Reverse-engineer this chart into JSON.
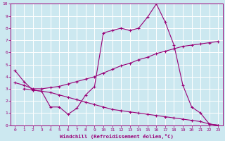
{
  "xlabel": "Windchill (Refroidissement éolien,°C)",
  "xlim": [
    -0.5,
    23.5
  ],
  "ylim": [
    0,
    10
  ],
  "xticks": [
    0,
    1,
    2,
    3,
    4,
    5,
    6,
    7,
    8,
    9,
    10,
    11,
    12,
    13,
    14,
    15,
    16,
    17,
    18,
    19,
    20,
    21,
    22,
    23
  ],
  "yticks": [
    0,
    1,
    2,
    3,
    4,
    5,
    6,
    7,
    8,
    9,
    10
  ],
  "background_color": "#cce8f0",
  "grid_color": "#ffffff",
  "line_color": "#990077",
  "line1_x": [
    0,
    1,
    2,
    3,
    4,
    5,
    6,
    7,
    8,
    9,
    10,
    11,
    12,
    13,
    14,
    15,
    16,
    17,
    18,
    19,
    20,
    21,
    22,
    23
  ],
  "line1_y": [
    4.5,
    3.6,
    2.9,
    2.8,
    1.5,
    1.5,
    0.9,
    1.4,
    2.5,
    3.2,
    7.6,
    7.8,
    8.0,
    7.8,
    8.0,
    8.9,
    10.0,
    8.5,
    6.6,
    3.3,
    1.5,
    1.0,
    0.1,
    0.0
  ],
  "line2_x": [
    0,
    1,
    2,
    3,
    4,
    5,
    6,
    7,
    8,
    9,
    10,
    11,
    12,
    13,
    14,
    15,
    16,
    17,
    18,
    19,
    20,
    21,
    22,
    23
  ],
  "line2_y": [
    3.5,
    3.3,
    3.0,
    3.0,
    3.1,
    3.2,
    3.4,
    3.6,
    3.8,
    4.0,
    4.3,
    4.6,
    4.9,
    5.1,
    5.4,
    5.6,
    5.9,
    6.1,
    6.3,
    6.5,
    6.6,
    6.7,
    6.8,
    6.9
  ],
  "line3_x": [
    1,
    2,
    3,
    4,
    5,
    6,
    7,
    8,
    9,
    10,
    11,
    12,
    13,
    14,
    15,
    16,
    17,
    18,
    19,
    20,
    21,
    22,
    23
  ],
  "line3_y": [
    3.0,
    2.9,
    2.8,
    2.7,
    2.5,
    2.3,
    2.1,
    1.9,
    1.7,
    1.5,
    1.3,
    1.2,
    1.1,
    1.0,
    0.9,
    0.8,
    0.7,
    0.6,
    0.5,
    0.4,
    0.3,
    0.1,
    0.0
  ],
  "font_family": "monospace"
}
